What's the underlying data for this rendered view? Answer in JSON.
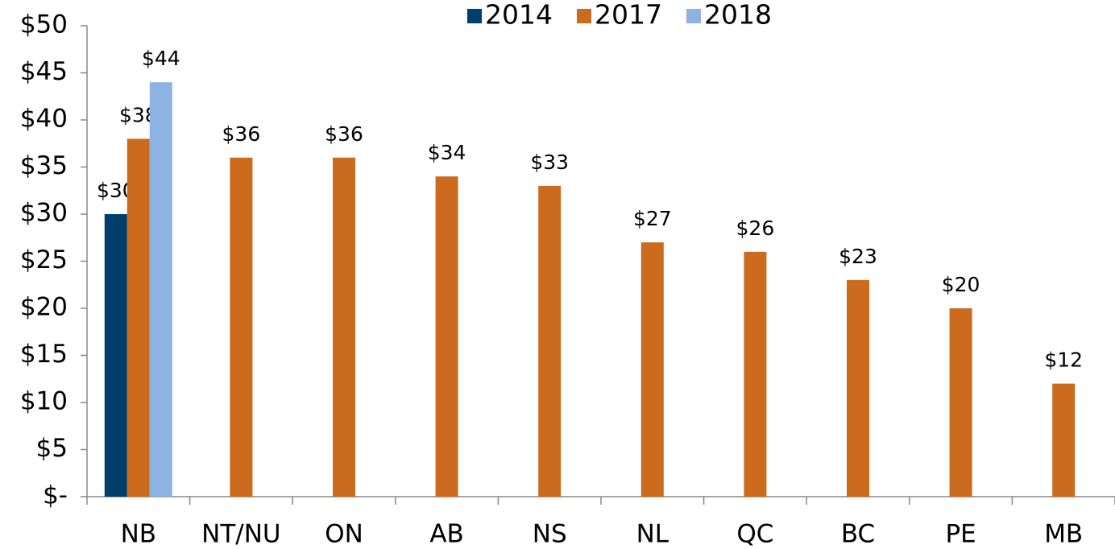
{
  "chart_data": {
    "type": "bar",
    "categories": [
      "NB",
      "NT/NU",
      "ON",
      "AB",
      "NS",
      "NL",
      "QC",
      "BC",
      "PE",
      "MB"
    ],
    "series": [
      {
        "name": "2014",
        "color": "#003f6b",
        "values": [
          30,
          null,
          null,
          null,
          null,
          null,
          null,
          null,
          null,
          null
        ],
        "value_labels": [
          "$30",
          null,
          null,
          null,
          null,
          null,
          null,
          null,
          null,
          null
        ]
      },
      {
        "name": "2017",
        "color": "#cc6a1e",
        "values": [
          38,
          36,
          36,
          34,
          33,
          27,
          26,
          23,
          20,
          12
        ],
        "value_labels": [
          "$38",
          "$36",
          "$36",
          "$34",
          "$33",
          "$27",
          "$26",
          "$23",
          "$20",
          "$12"
        ]
      },
      {
        "name": "2018",
        "color": "#8db3e2",
        "values": [
          44,
          null,
          null,
          null,
          null,
          null,
          null,
          null,
          null,
          null
        ],
        "value_labels": [
          "$44",
          null,
          null,
          null,
          null,
          null,
          null,
          null,
          null,
          null
        ]
      }
    ],
    "ylim": [
      0,
      50
    ],
    "yticks": [
      {
        "value": 0,
        "label": "$-"
      },
      {
        "value": 5,
        "label": "$5"
      },
      {
        "value": 10,
        "label": "$10"
      },
      {
        "value": 15,
        "label": "$15"
      },
      {
        "value": 20,
        "label": "$20"
      },
      {
        "value": 25,
        "label": "$25"
      },
      {
        "value": 30,
        "label": "$30"
      },
      {
        "value": 35,
        "label": "$35"
      },
      {
        "value": 40,
        "label": "$40"
      },
      {
        "value": 45,
        "label": "$45"
      },
      {
        "value": 50,
        "label": "$50"
      }
    ],
    "grid": false,
    "legend": "top"
  }
}
